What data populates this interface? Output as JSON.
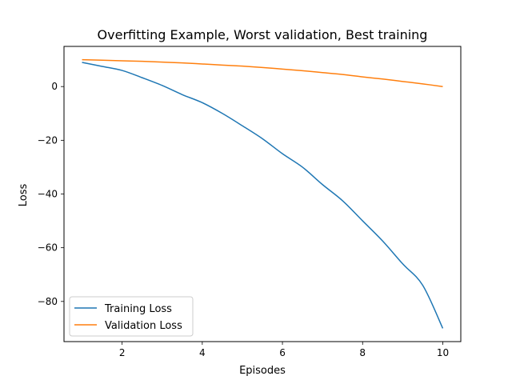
{
  "chart_data": {
    "type": "line",
    "title": "Overfitting Example, Worst validation, Best training",
    "xlabel": "Episodes",
    "ylabel": "Loss",
    "xlim": [
      0.55,
      10.45
    ],
    "ylim": [
      -94.95,
      14.95
    ],
    "xticks": [
      2,
      4,
      6,
      8,
      10
    ],
    "xtick_labels": [
      "2",
      "4",
      "6",
      "8",
      "10"
    ],
    "yticks": [
      -80,
      -60,
      -40,
      -20,
      0
    ],
    "ytick_labels": [
      "−80",
      "−60",
      "−40",
      "−20",
      "0"
    ],
    "grid": false,
    "legend_position": "lower-left",
    "series": [
      {
        "name": "Training Loss",
        "color": "#1f77b4",
        "x": [
          1,
          1.5,
          2,
          2.5,
          3,
          3.5,
          4,
          4.5,
          5,
          5.5,
          6,
          6.5,
          7,
          7.5,
          8,
          8.5,
          9,
          9.5,
          10
        ],
        "y": [
          9.0,
          7.5,
          6.0,
          3.3,
          0.4,
          -3.0,
          -6.0,
          -10.0,
          -14.6,
          -19.4,
          -25.0,
          -30.0,
          -36.5,
          -42.5,
          -50.0,
          -57.5,
          -66.0,
          -74.0,
          -90.0
        ]
      },
      {
        "name": "Validation Loss",
        "color": "#ff7f0e",
        "x": [
          1,
          1.5,
          2,
          2.5,
          3,
          3.5,
          4,
          4.5,
          5,
          5.5,
          6,
          6.5,
          7,
          7.5,
          8,
          8.5,
          9,
          9.5,
          10
        ],
        "y": [
          10.0,
          9.8,
          9.6,
          9.4,
          9.1,
          8.8,
          8.4,
          8.0,
          7.6,
          7.1,
          6.5,
          5.9,
          5.2,
          4.5,
          3.6,
          2.8,
          1.9,
          1.0,
          0.0
        ]
      }
    ]
  }
}
